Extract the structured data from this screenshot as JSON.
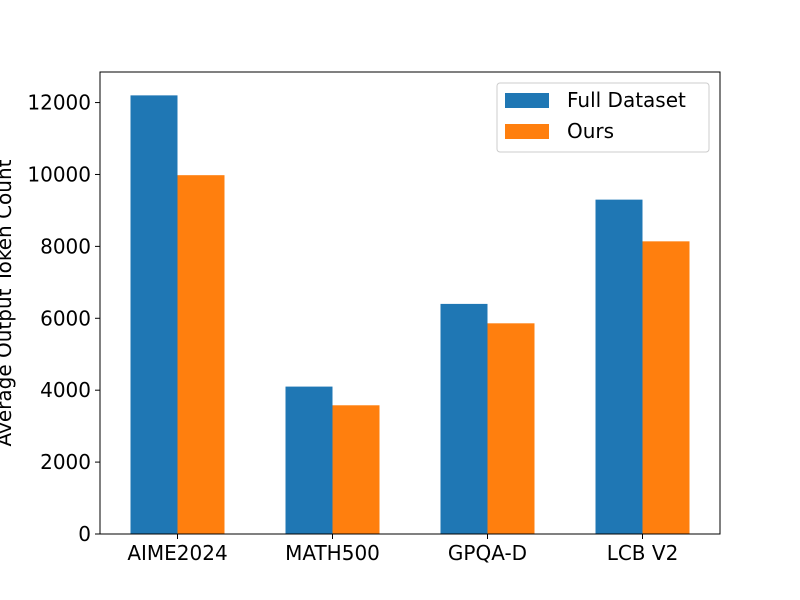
{
  "chart_data": {
    "type": "bar",
    "title": "",
    "xlabel": "",
    "ylabel": "Average Output Token Count",
    "categories": [
      "AIME2024",
      "MATH500",
      "GPQA-D",
      "LCB V2"
    ],
    "series": [
      {
        "name": "Full Dataset",
        "color": "#1f77b4",
        "values": [
          12200,
          4100,
          6400,
          9300
        ]
      },
      {
        "name": "Ours",
        "color": "#ff7f0e",
        "values": [
          9980,
          3580,
          5860,
          8140
        ]
      }
    ],
    "ylim": [
      0,
      12850
    ],
    "yticks": [
      0,
      2000,
      4000,
      6000,
      8000,
      10000,
      12000
    ],
    "grid": false,
    "legend_position": "top-right"
  }
}
